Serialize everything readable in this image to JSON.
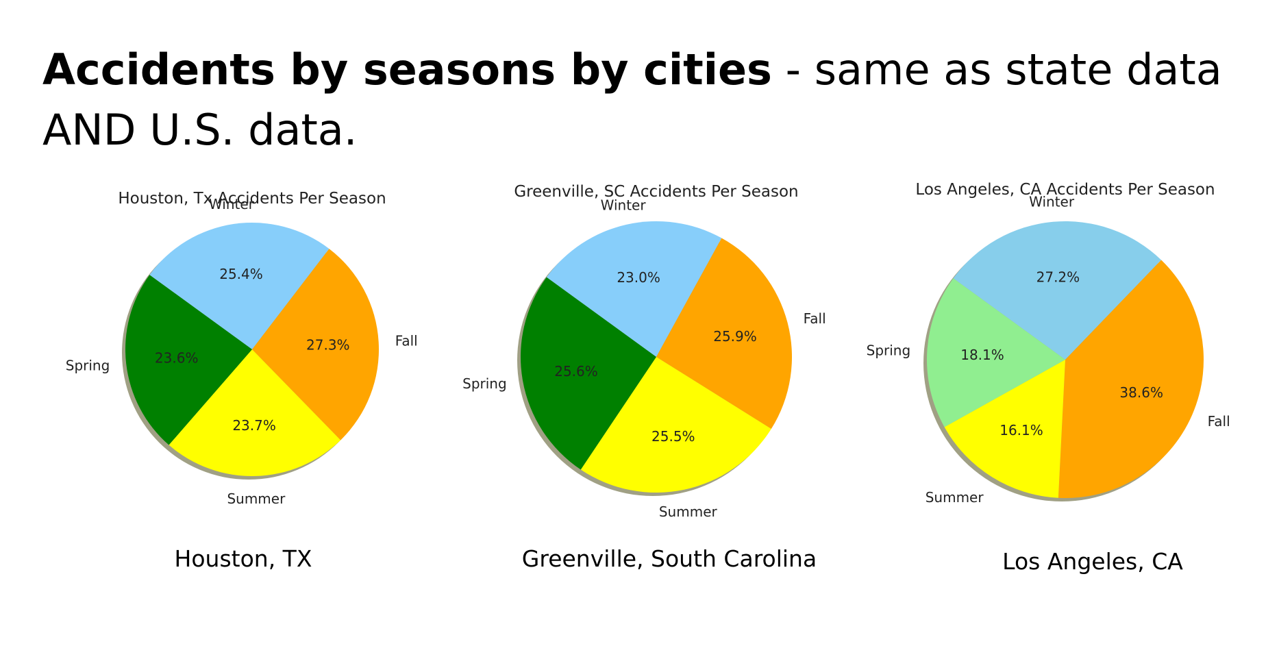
{
  "slide": {
    "title_bold": "Accidents by seasons by cities",
    "title_rest": " - same as state data AND U.S. data."
  },
  "captions": [
    "Houston, TX",
    "Greenville, South Carolina",
    "Los Angeles, CA"
  ],
  "colors": {
    "winter": "#87CEFA",
    "fall": "#FFA500",
    "summer": "#FFFF00",
    "spring": "#008000",
    "spring_light": "#90EE90",
    "winter_la": "#87CEEB",
    "shadow": "#8f8f6f"
  },
  "chart_data": [
    {
      "type": "pie",
      "title": "Houston, Tx Accidents Per Season",
      "categories": [
        "Winter",
        "Fall",
        "Summer",
        "Spring"
      ],
      "values": [
        25.4,
        27.3,
        23.7,
        23.6
      ],
      "labels": [
        "25.4%",
        "27.3%",
        "23.7%",
        "23.6%"
      ],
      "colors": [
        "#87CEFA",
        "#FFA500",
        "#FFFF00",
        "#008000"
      ],
      "start_angle_deg": 144
    },
    {
      "type": "pie",
      "title": "Greenville, SC Accidents Per Season",
      "categories": [
        "Winter",
        "Fall",
        "Summer",
        "Spring"
      ],
      "values": [
        23.0,
        25.9,
        25.5,
        25.6
      ],
      "labels": [
        "23.0%",
        "25.9%",
        "25.5%",
        "25.6%"
      ],
      "colors": [
        "#87CEFA",
        "#FFA500",
        "#FFFF00",
        "#008000"
      ],
      "start_angle_deg": 144
    },
    {
      "type": "pie",
      "title": "Los Angeles, CA Accidents Per Season",
      "categories": [
        "Winter",
        "Fall",
        "Summer",
        "Spring"
      ],
      "values": [
        27.2,
        38.6,
        16.1,
        18.1
      ],
      "labels": [
        "27.2%",
        "38.6%",
        "16.1%",
        "18.1%"
      ],
      "colors": [
        "#87CEEB",
        "#FFA500",
        "#FFFF00",
        "#90EE90"
      ],
      "start_angle_deg": 144
    }
  ]
}
